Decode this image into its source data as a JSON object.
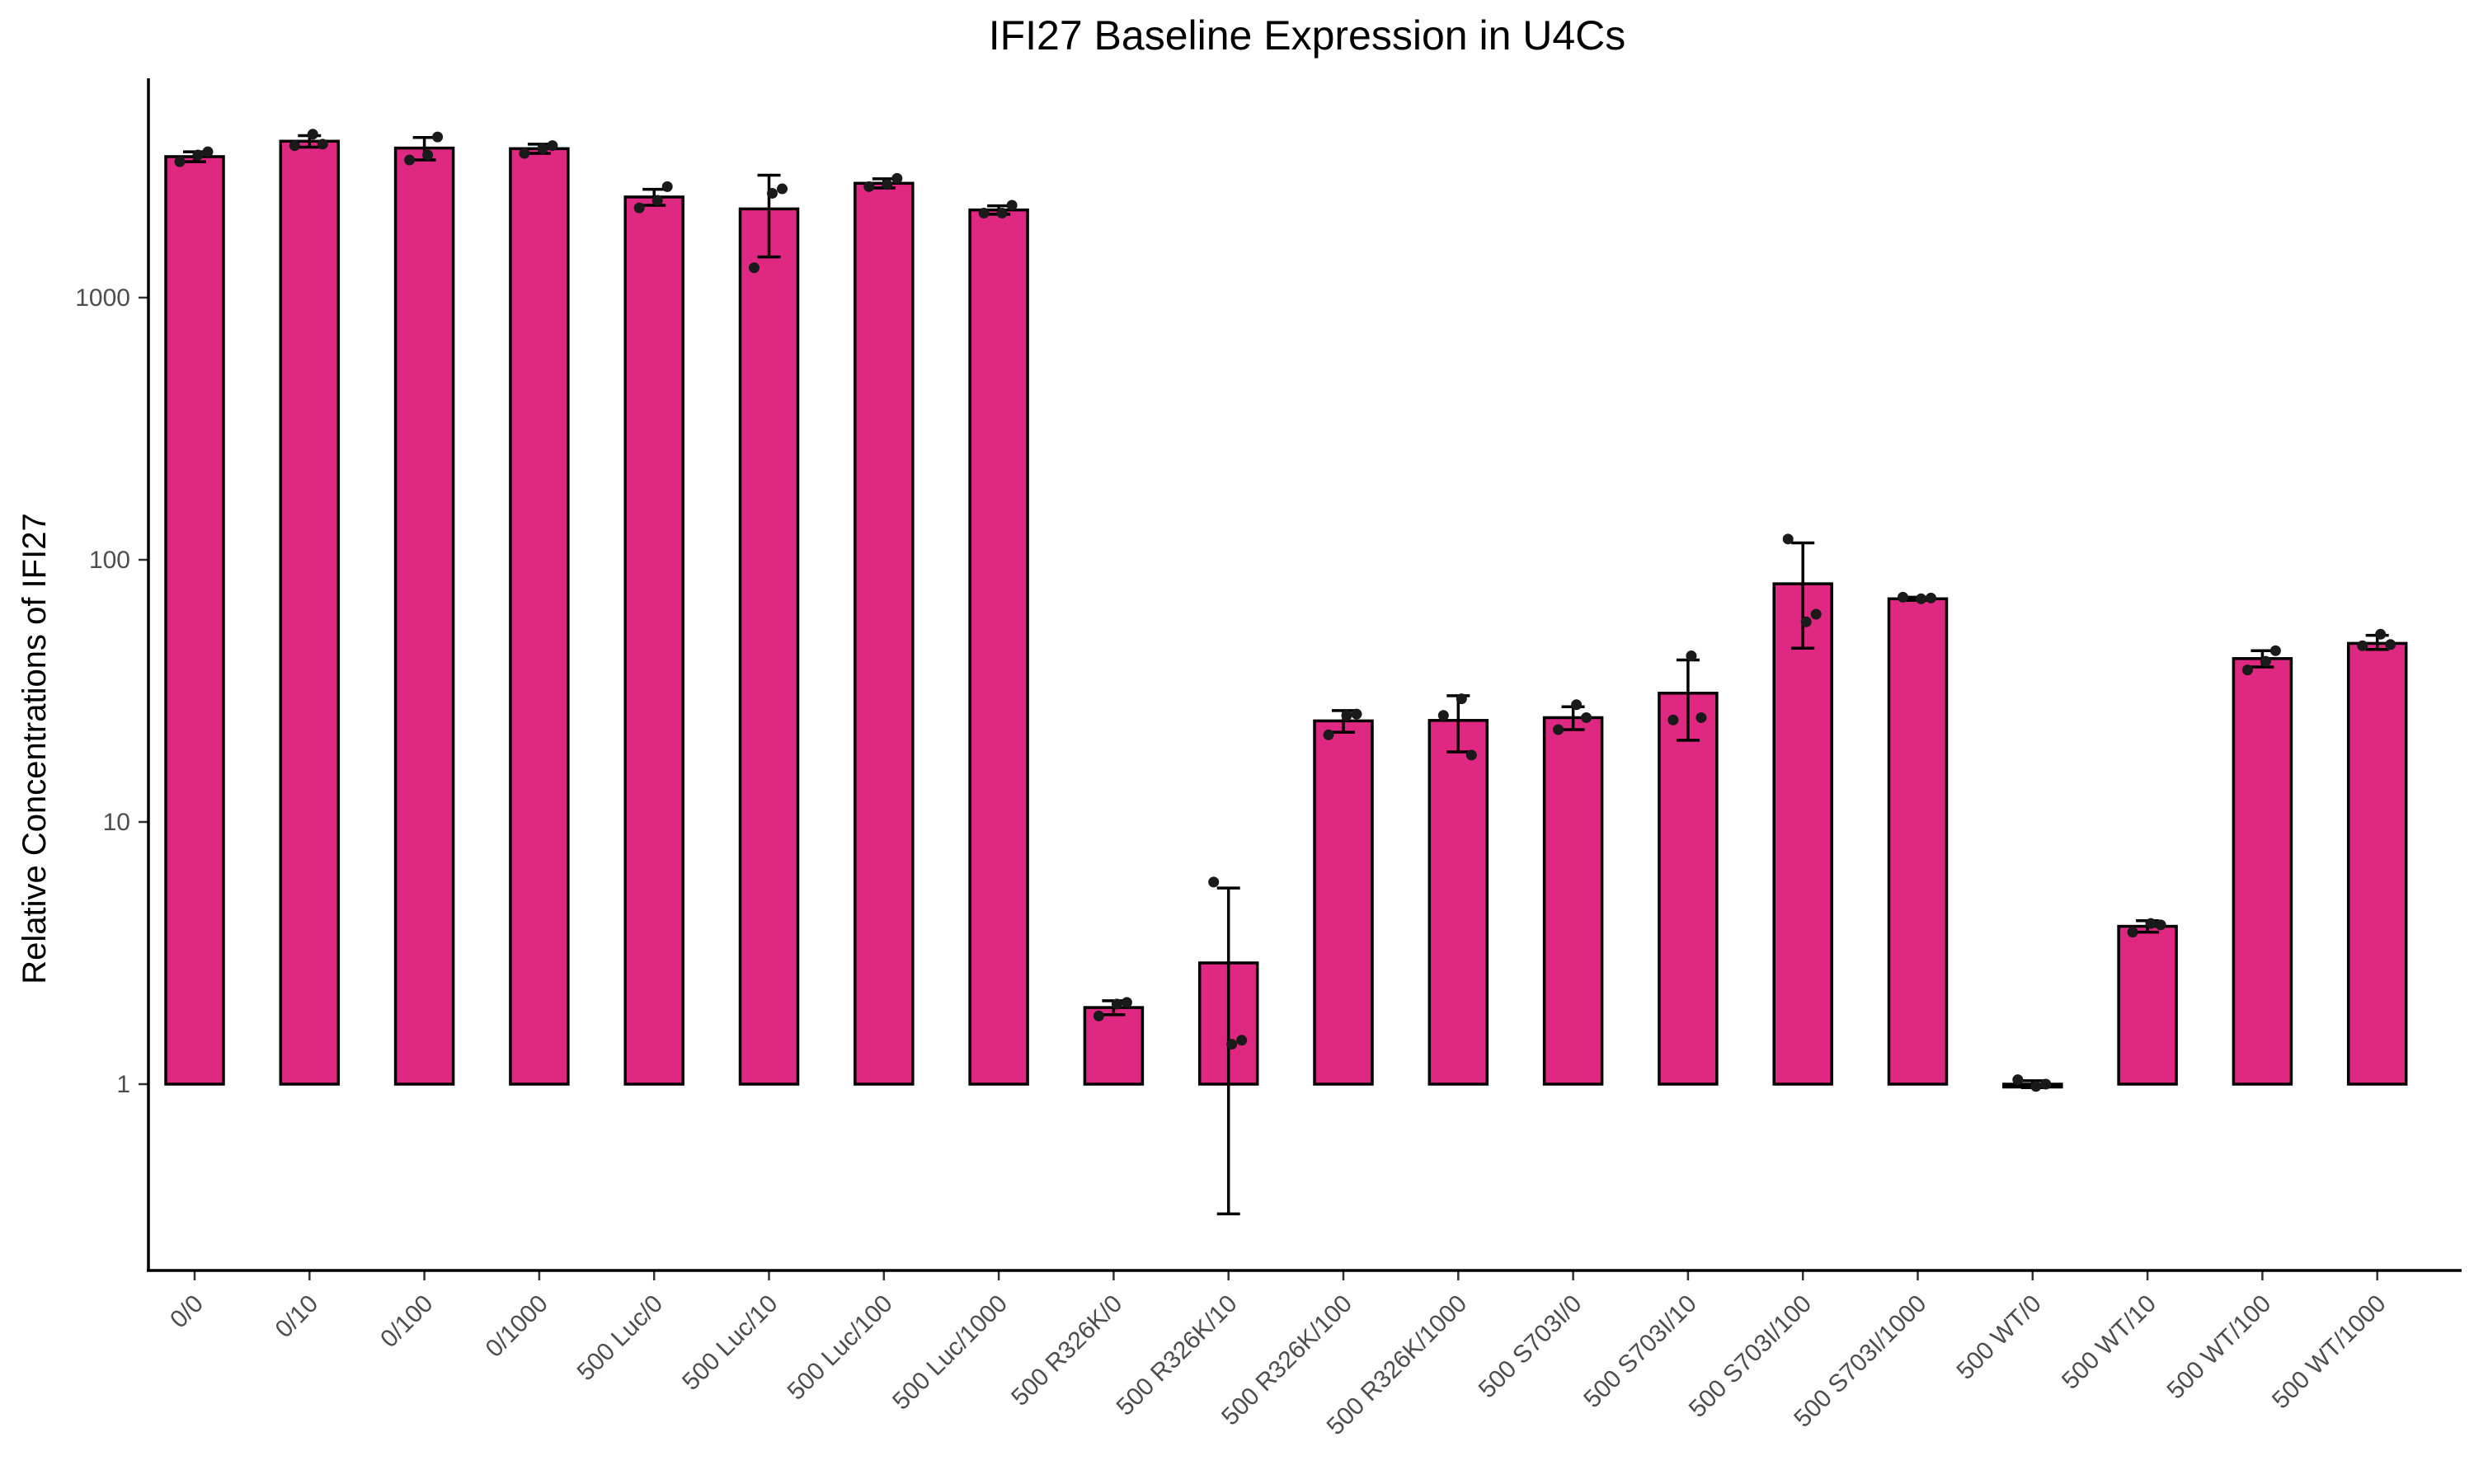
{
  "chart_data": {
    "type": "bar",
    "title": "IFI27 Baseline Expression in U4Cs",
    "xlabel": "",
    "ylabel": "Relative Concentrations of IFI27",
    "y_scale": "log10",
    "ylim": [
      0.2,
      6500
    ],
    "y_ticks": [
      1,
      10,
      100,
      1000
    ],
    "y_tick_labels": [
      "1",
      "10",
      "100",
      "1000"
    ],
    "grid": false,
    "legend": "none",
    "bar_fill": "#DE2882",
    "bar_base": 1,
    "categories": [
      "0/0",
      "0/10",
      "0/100",
      "0/1000",
      "500 Luc/0",
      "500 Luc/10",
      "500 Luc/100",
      "500 Luc/1000",
      "500 R326K/0",
      "500 R326K/10",
      "500 R326K/100",
      "500 R326K/1000",
      "500 S703I/0",
      "500 S703I/10",
      "500 S703I/100",
      "500 S703I/1000",
      "500 WT/0",
      "500 WT/10",
      "500 WT/100",
      "500 WT/1000"
    ],
    "values": [
      3450,
      3950,
      3720,
      3700,
      2420,
      2180,
      2730,
      2160,
      1.96,
      2.9,
      24.3,
      24.4,
      25.0,
      31.0,
      81.0,
      71.0,
      1.0,
      4.0,
      42.0,
      48.0
    ],
    "error_low": [
      3300,
      3750,
      3350,
      3550,
      2250,
      1430,
      2620,
      2080,
      1.84,
      0.32,
      22.0,
      18.5,
      22.5,
      20.5,
      46.0,
      70.0,
      0.97,
      3.8,
      39.0,
      45.5
    ],
    "error_high": [
      3600,
      4150,
      4080,
      3850,
      2590,
      2930,
      2840,
      2240,
      2.08,
      5.6,
      26.6,
      30.3,
      27.5,
      41.5,
      116.0,
      72.0,
      1.03,
      4.2,
      45.0,
      51.5
    ],
    "points": [
      [
        3300,
        3500,
        3600
      ],
      [
        3800,
        4200,
        3850
      ],
      [
        3350,
        3500,
        4100
      ],
      [
        3550,
        3700,
        3800
      ],
      [
        2200,
        2350,
        2650
      ],
      [
        1300,
        2500,
        2600
      ],
      [
        2650,
        2700,
        2850
      ],
      [
        2100,
        2100,
        2250
      ],
      [
        1.82,
        2.02,
        2.05
      ],
      [
        5.9,
        1.42,
        1.47
      ],
      [
        21.5,
        25.5,
        25.8
      ],
      [
        25.5,
        29.5,
        18.0
      ],
      [
        22.5,
        28.0,
        25.0
      ],
      [
        24.5,
        43.0,
        25.0
      ],
      [
        120.0,
        58.0,
        62.0
      ],
      [
        72.0,
        71.0,
        71.5
      ],
      [
        1.04,
        0.98,
        1.0
      ],
      [
        3.8,
        4.1,
        4.05
      ],
      [
        38.0,
        41.0,
        45.0
      ],
      [
        47.0,
        52.0,
        47.5
      ]
    ]
  }
}
